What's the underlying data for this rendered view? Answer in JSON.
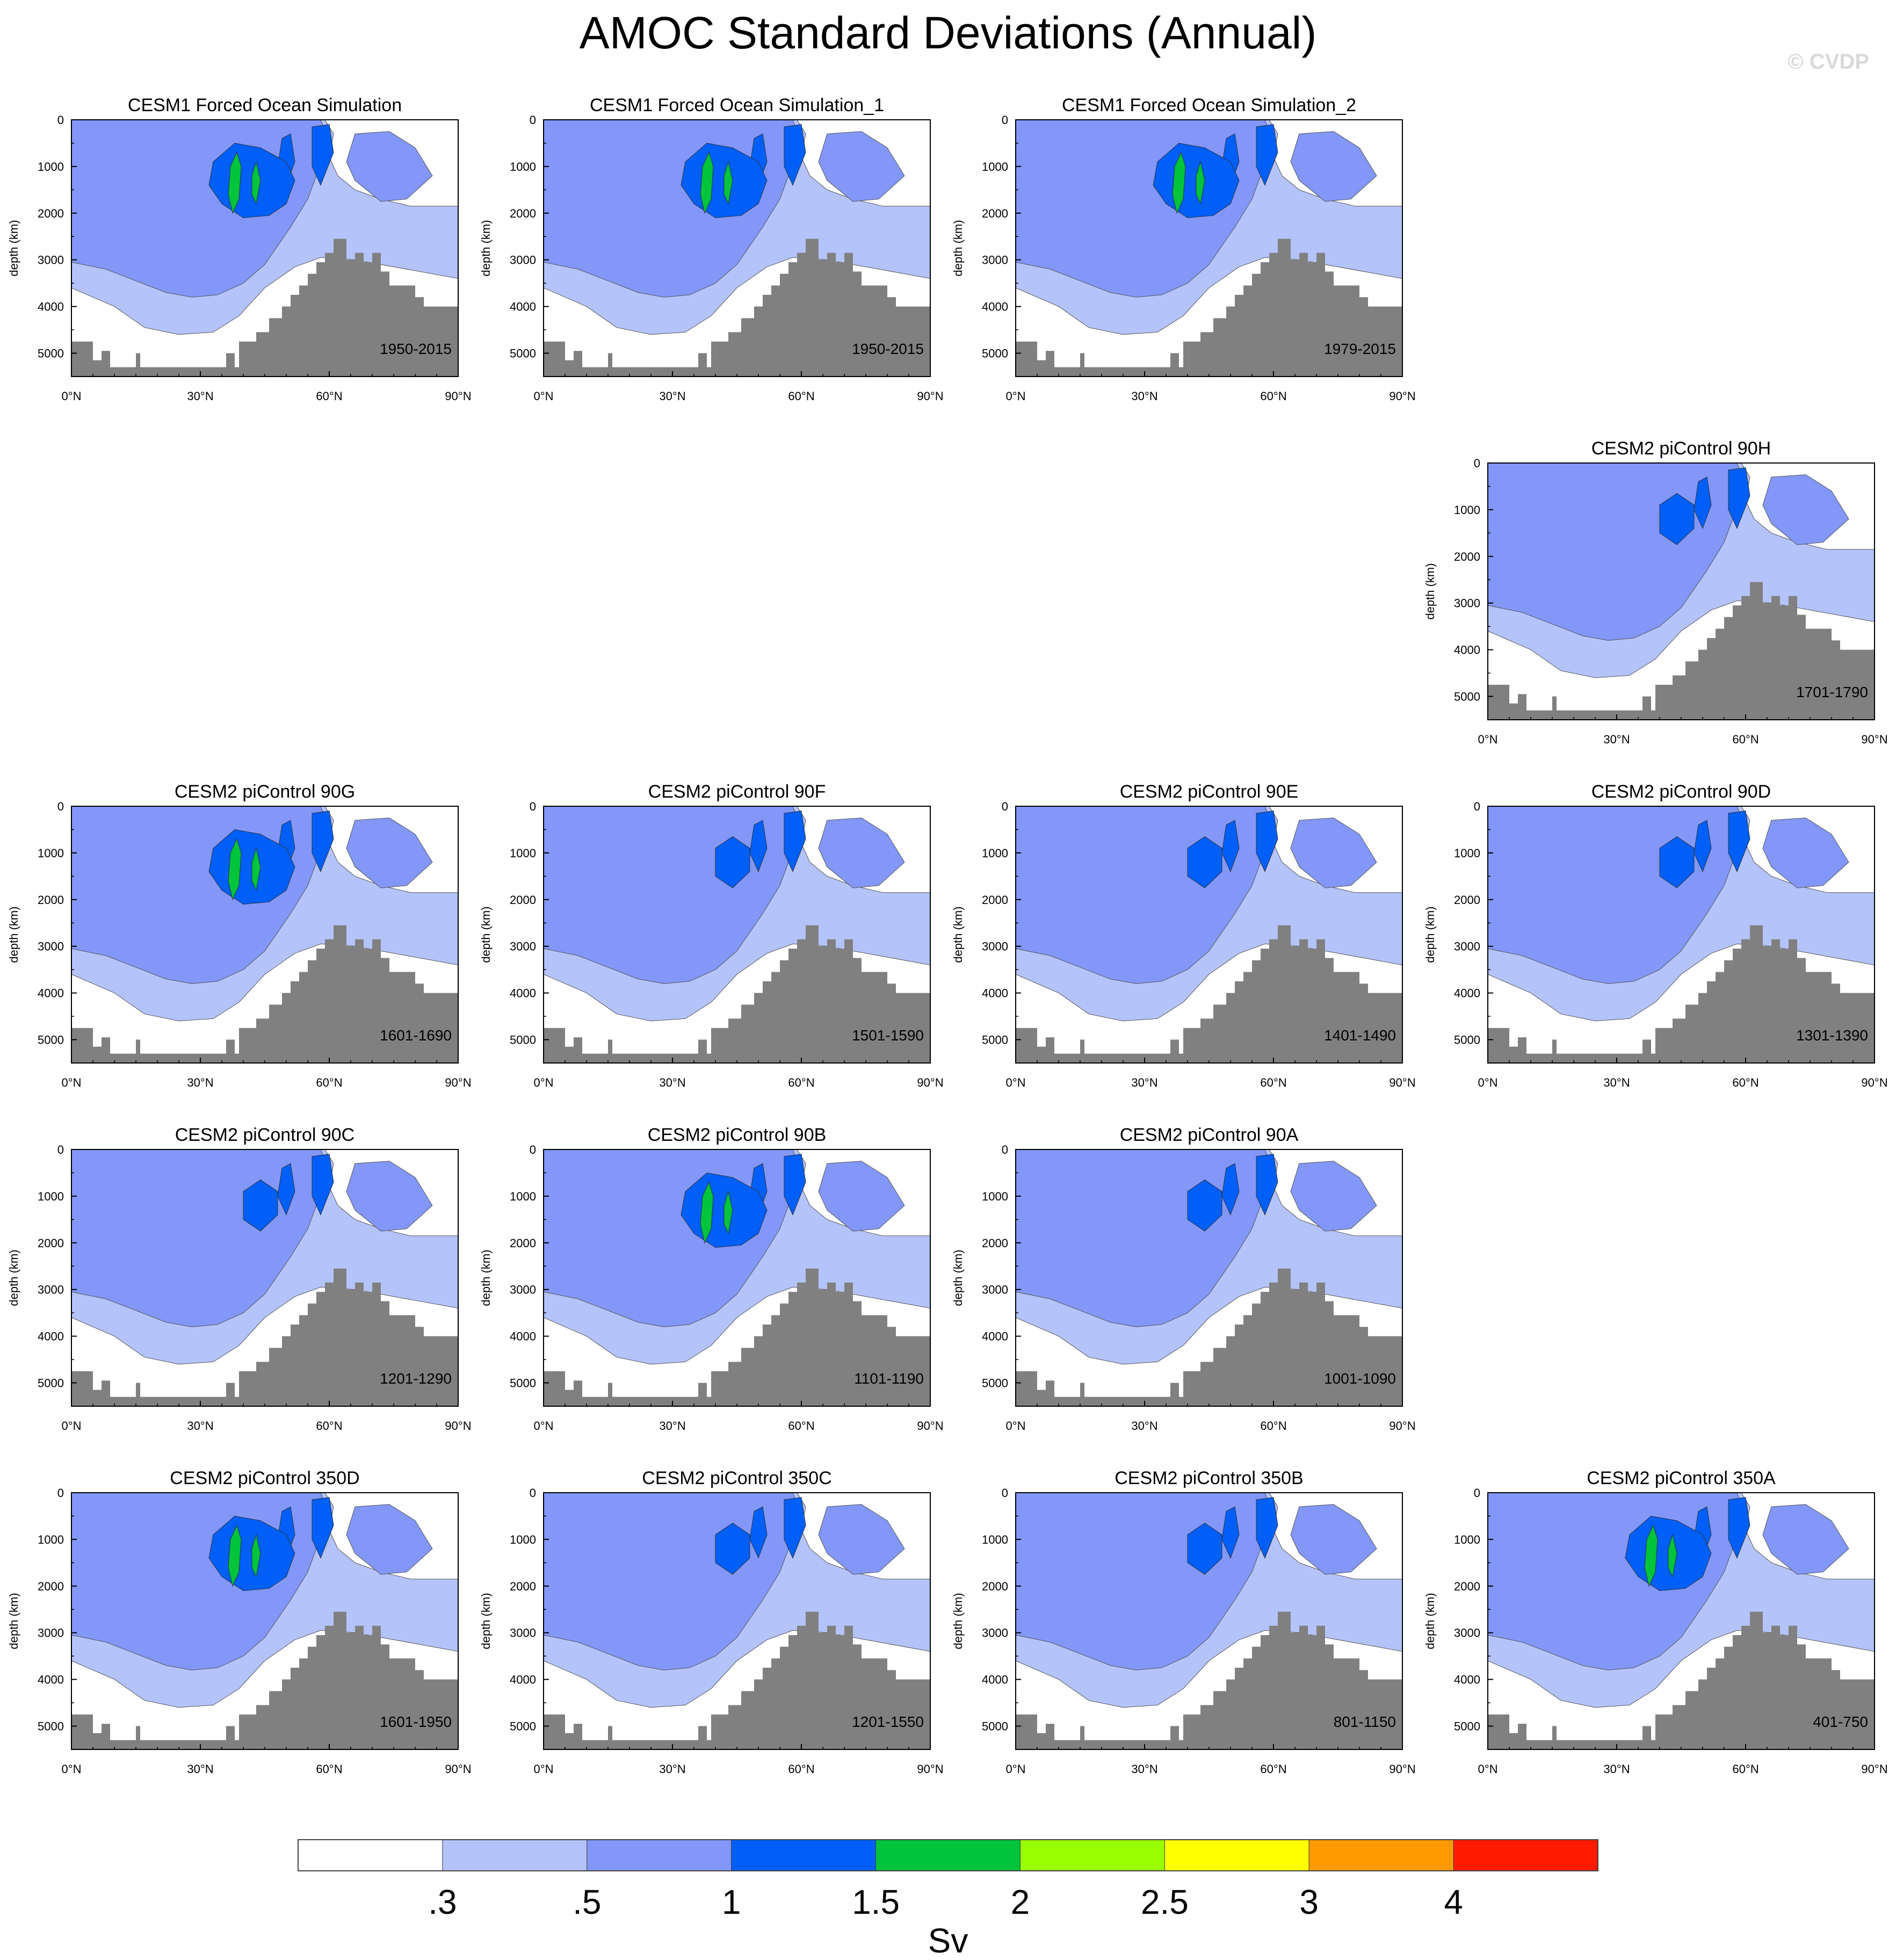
{
  "title": "AMOC Standard Deviations (Annual)",
  "watermark": "© CVDP",
  "chart_data": {
    "type": "contour",
    "ylabel": "depth (km)",
    "xticks": [
      "0°N",
      "30°N",
      "60°N",
      "90°N"
    ],
    "yticks": [
      "0",
      "1000",
      "2000",
      "3000",
      "4000",
      "5000"
    ],
    "xlim": [
      0,
      90
    ],
    "ylim": [
      5500,
      0
    ],
    "colorbar": {
      "units": "Sv",
      "levels": [
        ".3",
        ".5",
        "1",
        "1.5",
        "2",
        "2.5",
        "3",
        "4"
      ],
      "colors": [
        "#ffffff",
        "#b4c3fa",
        "#8297f8",
        "#005ff8",
        "#00c43c",
        "#9aff00",
        "#ffff00",
        "#ff9b00",
        "#ff1a00"
      ]
    },
    "panels": [
      {
        "title": "CESM1 Forced Ocean Simulation",
        "period": "1950-2015",
        "max_level": 4
      },
      {
        "title": "CESM1 Forced Ocean Simulation_1",
        "period": "1950-2015",
        "max_level": 4
      },
      {
        "title": "CESM1 Forced Ocean Simulation_2",
        "period": "1979-2015",
        "max_level": 4
      },
      {
        "title": "CESM2 piControl 90H",
        "period": "1701-1790",
        "max_level": 3
      },
      {
        "title": "CESM2 piControl 90G",
        "period": "1601-1690",
        "max_level": 4
      },
      {
        "title": "CESM2 piControl 90F",
        "period": "1501-1590",
        "max_level": 3
      },
      {
        "title": "CESM2 piControl 90E",
        "period": "1401-1490",
        "max_level": 3
      },
      {
        "title": "CESM2 piControl 90D",
        "period": "1301-1390",
        "max_level": 3
      },
      {
        "title": "CESM2 piControl 90C",
        "period": "1201-1290",
        "max_level": 3
      },
      {
        "title": "CESM2 piControl 90B",
        "period": "1101-1190",
        "max_level": 4
      },
      {
        "title": "CESM2 piControl 90A",
        "period": "1001-1090",
        "max_level": 3
      },
      {
        "title": "CESM2 piControl 350D",
        "period": "1601-1950",
        "max_level": 4
      },
      {
        "title": "CESM2 piControl 350C",
        "period": "1201-1550",
        "max_level": 3
      },
      {
        "title": "CESM2 piControl 350B",
        "period": "801-1150",
        "max_level": 3
      },
      {
        "title": "CESM2 piControl 350A",
        "period": "401-750",
        "max_level": 4
      }
    ]
  }
}
